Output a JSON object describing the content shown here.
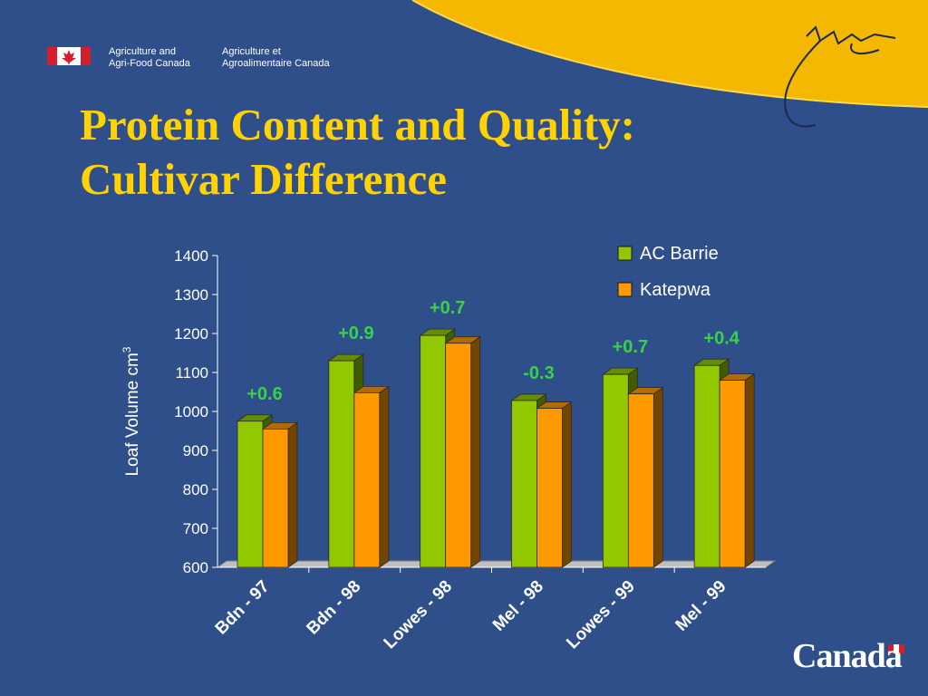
{
  "header": {
    "org_en_line1": "Agriculture and",
    "org_en_line2": "Agri-Food Canada",
    "org_fr_line1": "Agriculture et",
    "org_fr_line2": "Agroalimentaire Canada",
    "wordmark": "Canada"
  },
  "title_line1": "Protein Content and Quality:",
  "title_line2": "Cultivar Difference",
  "colors": {
    "background": "#2e4f8a",
    "title": "#ffd200",
    "arc": "#f5b800",
    "ac_barrie": "#92c800",
    "katepwa": "#ff9900",
    "annotation": "#37d24a"
  },
  "chart_data": {
    "type": "bar",
    "categories": [
      "Bdn - 97",
      "Bdn - 98",
      "Lowes - 98",
      "Mel - 98",
      "Lowes - 99",
      "Mel - 99"
    ],
    "series": [
      {
        "name": "AC Barrie",
        "values": [
          975,
          1130,
          1195,
          1028,
          1095,
          1118
        ]
      },
      {
        "name": "Katepwa",
        "values": [
          955,
          1048,
          1175,
          1008,
          1045,
          1080
        ]
      }
    ],
    "annotations": [
      "+0.6",
      "+0.9",
      "+0.7",
      "-0.3",
      "+0.7",
      "+0.4"
    ],
    "ylabel": "Loaf Volume cm",
    "ylabel_superscript": "3",
    "ylim": [
      600,
      1400
    ],
    "yticks": [
      600,
      700,
      800,
      900,
      1000,
      1100,
      1200,
      1300,
      1400
    ],
    "legend_position": "top-right",
    "style": "3d-bars"
  }
}
